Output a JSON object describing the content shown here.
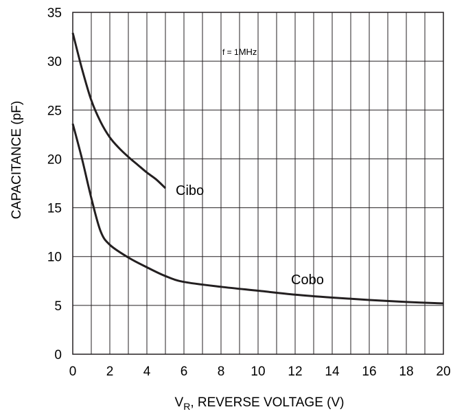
{
  "chart_data": {
    "type": "line",
    "title": "",
    "xlabel_main": "V",
    "xlabel_sub": "R",
    "xlabel_rest": ", REVERSE VOLTAGE (V)",
    "ylabel": "CAPACITANCE (pF)",
    "xlim": [
      0,
      20
    ],
    "ylim": [
      0,
      35
    ],
    "x_ticks": [
      "0",
      "2",
      "4",
      "6",
      "8",
      "10",
      "12",
      "14",
      "16",
      "18",
      "20"
    ],
    "y_ticks": [
      "0",
      "5",
      "10",
      "15",
      "20",
      "25",
      "30",
      "35"
    ],
    "grid": true,
    "annotation_prefix": "f = 1",
    "annotation_unit": "MHz",
    "series": [
      {
        "name": "Cibo",
        "color": "#231f20",
        "x": [
          0,
          0.5,
          1,
          1.5,
          2,
          2.5,
          3,
          3.5,
          4,
          4.5,
          5
        ],
        "y": [
          32.9,
          29.2,
          26.0,
          23.8,
          22.2,
          21.1,
          20.2,
          19.4,
          18.6,
          17.9,
          17.0
        ]
      },
      {
        "name": "Cobo",
        "color": "#231f20",
        "x": [
          0,
          0.5,
          1,
          1.5,
          2,
          3,
          4,
          5,
          6,
          8,
          10,
          12,
          14,
          16,
          18,
          20
        ],
        "y": [
          23.6,
          20.0,
          16.0,
          12.6,
          11.2,
          9.9,
          8.9,
          8.0,
          7.4,
          6.9,
          6.5,
          6.1,
          5.8,
          5.55,
          5.35,
          5.2
        ]
      }
    ]
  }
}
